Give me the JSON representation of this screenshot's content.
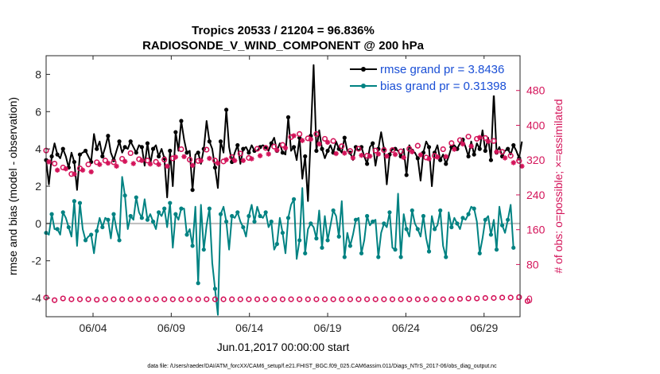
{
  "chart_data": {
    "type": "line",
    "title": "Tropics 20533 / 21204 = 96.836%",
    "subtitle": "RADIOSONDE_V_WIND_COMPONENT @ 200 hPa",
    "xlabel": "Jun.01,2017 00:00:00 start",
    "ylabel": "rmse and bias (model - observation)",
    "ylabel_right": "# of obs: o=possible; ×=assimilated",
    "xlim": [
      1.0,
      31.3
    ],
    "ylim": [
      -5,
      9
    ],
    "ylim_right": [
      -40,
      560
    ],
    "yticks": [
      -4,
      -2,
      0,
      2,
      4,
      6,
      8
    ],
    "yticks_right": [
      0,
      80,
      160,
      240,
      320,
      400,
      480
    ],
    "xticks": [
      {
        "x": 4,
        "label": "06/04"
      },
      {
        "x": 9,
        "label": "06/09"
      },
      {
        "x": 14,
        "label": "06/14"
      },
      {
        "x": 19,
        "label": "06/19"
      },
      {
        "x": 24,
        "label": "06/24"
      },
      {
        "x": 29,
        "label": "06/29"
      }
    ],
    "zero_line": 0,
    "footnote": "data file: /Users/raeder/DAI/ATM_forcXX/CAM6_setup/f.e21.FHIST_BGC.f09_025.CAM6assim.011/Diags_NTrS_2017-06/obs_diag_output.nc",
    "series": [
      {
        "name": "rmse grand pr = 3.8436",
        "color": "#000000",
        "axis": "left",
        "values": [
          3.4,
          2.1,
          3.6,
          4.3,
          3.7,
          3.5,
          4.0,
          3.6,
          3.0,
          3.8,
          3.3,
          1.8,
          3.7,
          3.8,
          3.9,
          3.6,
          3.3,
          4.8,
          4.0,
          4.4,
          3.6,
          4.1,
          4.7,
          3.8,
          3.4,
          3.9,
          4.4,
          3.8,
          4.1,
          4.0,
          4.4,
          4.1,
          3.8,
          4.2,
          4.1,
          3.1,
          4.3,
          3.2,
          4.0,
          4.2,
          3.6,
          4.0,
          3.5,
          1.4,
          3.9,
          2.0,
          4.9,
          3.9,
          5.5,
          4.5,
          3.8,
          3.9,
          1.8,
          3.7,
          3.8,
          3.2,
          4.0,
          5.5,
          4.4,
          4.0,
          3.0,
          1.9,
          4.4,
          3.8,
          6.1,
          4.1,
          3.3,
          3.8,
          4.2,
          3.2,
          4.0,
          4.1,
          3.8,
          4.2,
          3.9,
          3.9,
          4.1,
          4.2,
          4.1,
          3.9,
          4.3,
          4.6,
          3.9,
          4.3,
          3.8,
          3.7,
          5.7,
          3.9,
          4.1,
          3.4,
          4.6,
          2.4,
          3.6,
          1.2,
          4.7,
          8.5,
          3.9,
          5.0,
          4.0,
          3.5,
          3.9,
          4.2,
          3.8,
          4.4,
          4.0,
          3.8,
          4.6,
          3.9,
          3.8,
          3.4,
          4.1,
          3.9,
          4.1,
          3.6,
          3.2,
          4.1,
          4.3,
          3.1,
          4.0,
          4.9,
          4.0,
          2.1,
          3.7,
          4.0,
          4.0,
          3.9,
          3.6,
          4.0,
          2.6,
          4.2,
          3.9,
          3.8,
          3.5,
          2.3,
          3.8,
          4.4,
          4.1,
          2.0,
          3.8,
          4.2,
          3.4,
          3.7,
          3.2,
          3.6,
          4.1,
          4.2,
          4.0,
          4.3,
          4.5,
          4.1,
          3.6,
          4.4,
          3.7,
          4.3,
          4.0,
          5.0,
          3.9,
          4.6,
          3.4,
          7.0,
          3.8,
          4.1,
          3.6,
          3.9,
          4.0,
          3.7,
          4.2,
          3.9,
          3.5,
          4.4
        ],
        "marker": "dot"
      },
      {
        "name": "bias grand pr = 0.31398",
        "color": "#008282",
        "axis": "left",
        "values": [
          -0.5,
          -0.6,
          0.5,
          -0.3,
          -0.3,
          -0.6,
          0.6,
          0.3,
          -0.2,
          -0.7,
          1.2,
          -1.2,
          1.1,
          -0.3,
          -0.9,
          -0.7,
          -0.6,
          -1.6,
          -0.4,
          0.3,
          -0.2,
          0.3,
          0.2,
          -0.8,
          0.5,
          -0.3,
          -0.9,
          2.5,
          1.5,
          -0.3,
          0.4,
          0.2,
          1.4,
          0.6,
          0.3,
          1.3,
          0.2,
          0.5,
          0.1,
          -0.3,
          0.6,
          0.4,
          0.8,
          -0.2,
          1.1,
          -1.3,
          0.5,
          0.2,
          0.8,
          0.8,
          -0.6,
          -0.3,
          -1.2,
          0.9,
          -3.2,
          1.0,
          -1.4,
          -0.1,
          0.8,
          -2.1,
          -3.5,
          -4.9,
          0.5,
          0.9,
          0.1,
          -1.4,
          0.4,
          0.3,
          0.6,
          0.1,
          -0.2,
          -0.7,
          0.4,
          1.0,
          0.1,
          0.9,
          0.4,
          0.3,
          0.6,
          -0.2,
          0.1,
          -1.4,
          -1.1,
          0.3,
          -0.5,
          -1.6,
          0.3,
          1.0,
          1.3,
          -1.9,
          -0.9,
          1.9,
          -1.6,
          -0.3,
          0.0,
          -0.2,
          -0.8,
          0.7,
          -1.3,
          0.4,
          -0.9,
          -0.1,
          0.7,
          0.4,
          -0.7,
          1.2,
          -1.8,
          -0.5,
          -1.2,
          -0.6,
          0.2,
          0.3,
          -1.6,
          -0.9,
          0.4,
          -0.1,
          0.1,
          0.2,
          -1.8,
          -0.5,
          0.0,
          -0.2,
          0.6,
          -1.3,
          -1.4,
          1.6,
          -1.8,
          0.5,
          -0.3,
          -0.7,
          0.7,
          0.0,
          -0.3,
          -0.7,
          0.4,
          -0.8,
          -1.5,
          0.4,
          -0.3,
          -0.1,
          0.7,
          -1.2,
          -1.8,
          0.6,
          -0.2,
          0.3,
          0.0,
          -0.3,
          0.3,
          0.2,
          0.5,
          0.9,
          0.8,
          0.1,
          -1.6,
          -0.8,
          0.2,
          0.4,
          -0.6,
          0.2,
          -1.4,
          0.9,
          -0.1,
          -0.5,
          0.2,
          1.0,
          -1.3
        ],
        "marker": "dot"
      },
      {
        "name": "# obs possible",
        "color": "#d4145a",
        "axis": "right",
        "marker": "circle",
        "values": [
          342,
          326,
          316,
          312,
          307,
          298,
          303,
          309,
          301,
          288,
          297,
          289,
          301,
          306,
          309,
          310,
          302,
          317,
          315,
          319,
          312,
          319,
          323,
          312,
          315,
          316,
          328,
          323,
          327,
          332,
          336,
          322,
          328,
          322,
          330,
          318,
          319,
          321,
          317,
          316,
          320,
          322,
          321,
          316,
          329,
          324,
          338,
          333,
          345,
          339,
          320,
          321,
          319,
          330,
          318,
          330,
          324,
          344,
          335,
          330,
          319,
          324,
          324,
          317,
          332,
          325,
          327,
          330,
          340,
          335,
          330,
          334,
          325,
          334,
          338,
          346,
          341,
          350,
          348,
          345,
          338,
          351,
          354,
          345,
          355,
          360,
          385,
          373,
          388,
          368,
          380,
          377,
          378,
          370,
          380,
          386,
          380,
          369,
          380,
          369,
          373,
          355,
          364,
          346,
          350,
          352,
          348,
          339,
          341,
          336,
          336,
          346,
          342,
          346,
          330,
          340,
          339,
          342,
          345,
          347,
          343,
          340,
          340,
          343,
          344,
          343,
          340,
          337,
          340,
          346,
          350,
          356,
          353,
          343,
          332,
          326,
          334,
          337,
          330,
          338,
          341,
          345,
          339,
          352,
          359,
          356,
          361,
          366,
          368,
          371,
          374,
          363,
          363,
          369,
          383,
          359,
          371,
          374,
          366,
          364,
          350,
          347,
          339,
          336,
          331,
          330,
          325,
          322,
          318,
          317
        ]
      },
      {
        "name": "# obs assimilated",
        "color": "#d4145a",
        "axis": "right",
        "marker": "asterisk",
        "values": [
          332,
          316,
          306,
          303,
          297,
          289,
          293,
          300,
          292,
          279,
          288,
          280,
          292,
          297,
          300,
          300,
          293,
          307,
          306,
          310,
          302,
          309,
          313,
          302,
          305,
          306,
          317,
          313,
          317,
          321,
          326,
          312,
          318,
          312,
          319,
          308,
          309,
          311,
          307,
          306,
          310,
          312,
          311,
          306,
          318,
          313,
          327,
          322,
          334,
          328,
          309,
          310,
          308,
          319,
          308,
          319,
          313,
          333,
          324,
          319,
          309,
          313,
          313,
          307,
          321,
          315,
          317,
          319,
          329,
          324,
          319,
          323,
          314,
          323,
          327,
          335,
          330,
          339,
          337,
          334,
          327,
          340,
          343,
          334,
          344,
          348,
          373,
          361,
          376,
          356,
          368,
          365,
          366,
          358,
          368,
          374,
          368,
          357,
          368,
          357,
          361,
          343,
          352,
          335,
          338,
          340,
          336,
          328,
          330,
          325,
          325,
          335,
          331,
          335,
          319,
          329,
          328,
          331,
          334,
          336,
          332,
          329,
          329,
          332,
          333,
          332,
          329,
          326,
          329,
          335,
          339,
          345,
          342,
          332,
          321,
          315,
          323,
          326,
          319,
          327,
          330,
          334,
          328,
          341,
          348,
          345,
          350,
          355,
          357,
          360,
          363,
          352,
          352,
          358,
          372,
          348,
          360,
          363,
          355,
          353,
          339,
          336,
          328,
          325,
          320,
          319,
          314,
          311,
          307,
          306
        ]
      },
      {
        "name": "# obs near zero (possible)",
        "color": "#d4145a",
        "axis": "right",
        "marker": "circle",
        "values": [
          4,
          1,
          3,
          -2,
          6,
          9,
          2,
          -1,
          0,
          0,
          -1,
          0,
          0,
          1,
          0,
          0,
          0,
          0,
          -1,
          0,
          0,
          0,
          0,
          0,
          0,
          0,
          0,
          0,
          0,
          0,
          0,
          0,
          0,
          0,
          0,
          0,
          0,
          0,
          0,
          0,
          0,
          0,
          0,
          0,
          0,
          0,
          0,
          0,
          0,
          0,
          0,
          0,
          0,
          0,
          0,
          0,
          0,
          0,
          0,
          0,
          0,
          0,
          0,
          0,
          0,
          0,
          0,
          0,
          0,
          0,
          0,
          0,
          0,
          0,
          0,
          0,
          0,
          0,
          0,
          0,
          0,
          0,
          0,
          0,
          0,
          0,
          0,
          0,
          0,
          0,
          0,
          0,
          0,
          0,
          0,
          0,
          0,
          0,
          0,
          0,
          0,
          0,
          0,
          0,
          0,
          0,
          0,
          0,
          0,
          0,
          0,
          0,
          0,
          0,
          0,
          0,
          0,
          0,
          0,
          0,
          0,
          0,
          0,
          0,
          0,
          0,
          0,
          0,
          0,
          0,
          0,
          0,
          0,
          0,
          0,
          0,
          0,
          0,
          0,
          0,
          0,
          0,
          0,
          0,
          0,
          0,
          1,
          1,
          1,
          2,
          2,
          3,
          2,
          2,
          3,
          2,
          3,
          3,
          3,
          3,
          2,
          3,
          4,
          5,
          4,
          4,
          3,
          4,
          5,
          6,
          0,
          -4
        ]
      }
    ]
  }
}
